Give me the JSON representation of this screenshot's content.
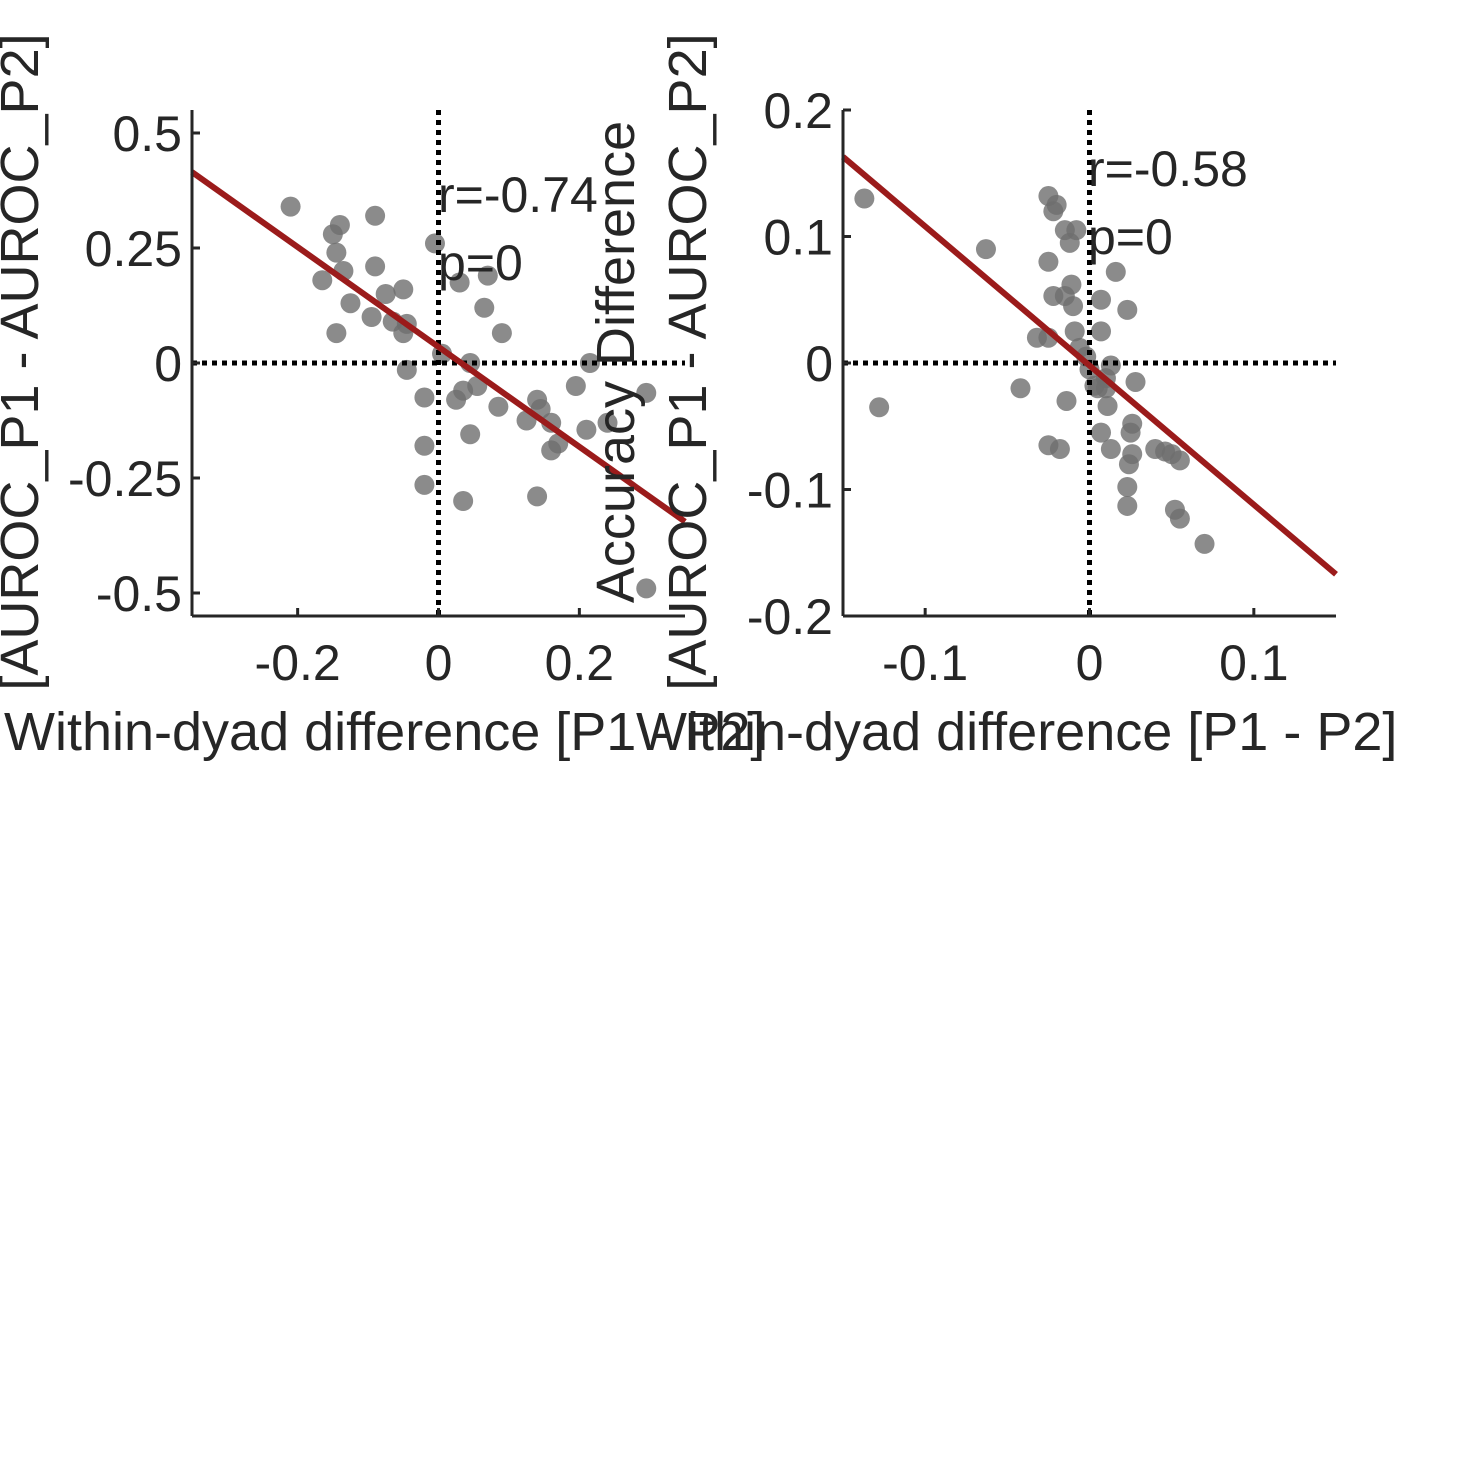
{
  "chart_data": [
    {
      "type": "scatter",
      "title": "",
      "xlabel": "Within-dyad difference [P1 - P2]",
      "ylabel": "[AUROC_P1 - AUROC_P2]",
      "ylabel_prefix": "",
      "xlim": [
        -0.35,
        0.35
      ],
      "ylim": [
        -0.55,
        0.55
      ],
      "xticks": [
        -0.2,
        0,
        0.2
      ],
      "xtick_labels": [
        "-0.2",
        "0",
        "0.2"
      ],
      "yticks": [
        -0.5,
        -0.25,
        0,
        0.25,
        0.5
      ],
      "ytick_labels": [
        "-0.5",
        "-0.25",
        "0",
        "0.25",
        "0.5"
      ],
      "grid": false,
      "reference_lines": {
        "x": 0,
        "y": 0,
        "style": "dotted"
      },
      "annotations": [
        "r=-0.74",
        "p=0"
      ],
      "point_color": "#6e6e6e",
      "fit_line_color": "#9b1b1b",
      "fit_line": {
        "x": [
          -0.35,
          0.35
        ],
        "y": [
          0.415,
          -0.345
        ]
      },
      "points": [
        {
          "x": -0.21,
          "y": 0.34
        },
        {
          "x": -0.15,
          "y": 0.28
        },
        {
          "x": -0.14,
          "y": 0.3
        },
        {
          "x": -0.09,
          "y": 0.32
        },
        {
          "x": -0.145,
          "y": 0.24
        },
        {
          "x": -0.165,
          "y": 0.18
        },
        {
          "x": -0.135,
          "y": 0.2
        },
        {
          "x": -0.09,
          "y": 0.21
        },
        {
          "x": -0.125,
          "y": 0.13
        },
        {
          "x": -0.075,
          "y": 0.15
        },
        {
          "x": -0.05,
          "y": 0.16
        },
        {
          "x": -0.145,
          "y": 0.065
        },
        {
          "x": -0.095,
          "y": 0.1
        },
        {
          "x": -0.065,
          "y": 0.09
        },
        {
          "x": -0.05,
          "y": 0.065
        },
        {
          "x": -0.045,
          "y": 0.085
        },
        {
          "x": -0.045,
          "y": -0.015
        },
        {
          "x": -0.005,
          "y": 0.26
        },
        {
          "x": 0.03,
          "y": 0.175
        },
        {
          "x": 0.07,
          "y": 0.19
        },
        {
          "x": 0.065,
          "y": 0.12
        },
        {
          "x": 0.09,
          "y": 0.065
        },
        {
          "x": 0.005,
          "y": 0.02
        },
        {
          "x": 0.045,
          "y": 0.0
        },
        {
          "x": -0.02,
          "y": -0.075
        },
        {
          "x": 0.025,
          "y": -0.08
        },
        {
          "x": 0.035,
          "y": -0.06
        },
        {
          "x": 0.055,
          "y": -0.05
        },
        {
          "x": 0.085,
          "y": -0.095
        },
        {
          "x": 0.045,
          "y": -0.155
        },
        {
          "x": -0.02,
          "y": -0.18
        },
        {
          "x": -0.02,
          "y": -0.265
        },
        {
          "x": 0.035,
          "y": -0.3
        },
        {
          "x": 0.125,
          "y": -0.125
        },
        {
          "x": 0.14,
          "y": -0.08
        },
        {
          "x": 0.145,
          "y": -0.1
        },
        {
          "x": 0.16,
          "y": -0.13
        },
        {
          "x": 0.17,
          "y": -0.175
        },
        {
          "x": 0.16,
          "y": -0.19
        },
        {
          "x": 0.14,
          "y": -0.29
        },
        {
          "x": 0.195,
          "y": -0.05
        },
        {
          "x": 0.21,
          "y": -0.145
        },
        {
          "x": 0.215,
          "y": 0.0
        },
        {
          "x": 0.24,
          "y": -0.13
        },
        {
          "x": 0.295,
          "y": -0.065
        },
        {
          "x": 0.295,
          "y": -0.49
        }
      ]
    },
    {
      "type": "scatter",
      "title": "",
      "xlabel": "Within-dyad difference [P1 - P2]",
      "ylabel": "[AUROC_P1 - AUROC_P2]",
      "ylabel_prefix": "Accuracy Difference",
      "xlim": [
        -0.15,
        0.15
      ],
      "ylim": [
        -0.2,
        0.2
      ],
      "xticks": [
        -0.1,
        0,
        0.1
      ],
      "xtick_labels": [
        "-0.1",
        "0",
        "0.1"
      ],
      "yticks": [
        -0.2,
        -0.1,
        0,
        0.1,
        0.2
      ],
      "ytick_labels": [
        "-0.2",
        "-0.1",
        "0",
        "0.1",
        "0.2"
      ],
      "grid": false,
      "reference_lines": {
        "x": 0,
        "y": 0,
        "style": "dotted"
      },
      "annotations": [
        "r=-0.58",
        "p=0"
      ],
      "point_color": "#6e6e6e",
      "fit_line_color": "#9b1b1b",
      "fit_line": {
        "x": [
          -0.15,
          0.15
        ],
        "y": [
          0.163,
          -0.167
        ]
      },
      "points": [
        {
          "x": -0.137,
          "y": 0.13
        },
        {
          "x": -0.128,
          "y": -0.035
        },
        {
          "x": -0.063,
          "y": 0.09
        },
        {
          "x": -0.042,
          "y": -0.02
        },
        {
          "x": -0.032,
          "y": 0.02
        },
        {
          "x": -0.025,
          "y": 0.132
        },
        {
          "x": -0.022,
          "y": 0.12
        },
        {
          "x": -0.02,
          "y": 0.125
        },
        {
          "x": -0.015,
          "y": 0.105
        },
        {
          "x": -0.012,
          "y": 0.095
        },
        {
          "x": -0.008,
          "y": 0.105
        },
        {
          "x": -0.025,
          "y": 0.08
        },
        {
          "x": -0.022,
          "y": 0.053
        },
        {
          "x": -0.015,
          "y": 0.053
        },
        {
          "x": -0.011,
          "y": 0.062
        },
        {
          "x": -0.01,
          "y": 0.045
        },
        {
          "x": -0.025,
          "y": 0.02
        },
        {
          "x": -0.009,
          "y": 0.025
        },
        {
          "x": -0.006,
          "y": 0.012
        },
        {
          "x": -0.002,
          "y": 0.005
        },
        {
          "x": 0.0,
          "y": -0.005
        },
        {
          "x": 0.003,
          "y": -0.018
        },
        {
          "x": 0.005,
          "y": -0.02
        },
        {
          "x": -0.014,
          "y": -0.03
        },
        {
          "x": -0.025,
          "y": -0.065
        },
        {
          "x": -0.018,
          "y": -0.068
        },
        {
          "x": 0.007,
          "y": 0.05
        },
        {
          "x": 0.007,
          "y": 0.025
        },
        {
          "x": 0.016,
          "y": 0.072
        },
        {
          "x": 0.023,
          "y": 0.042
        },
        {
          "x": 0.013,
          "y": -0.002
        },
        {
          "x": 0.01,
          "y": -0.012
        },
        {
          "x": 0.01,
          "y": -0.02
        },
        {
          "x": 0.011,
          "y": -0.034
        },
        {
          "x": 0.028,
          "y": -0.015
        },
        {
          "x": 0.007,
          "y": -0.055
        },
        {
          "x": 0.013,
          "y": -0.068
        },
        {
          "x": 0.026,
          "y": -0.048
        },
        {
          "x": 0.025,
          "y": -0.055
        },
        {
          "x": 0.026,
          "y": -0.072
        },
        {
          "x": 0.024,
          "y": -0.08
        },
        {
          "x": 0.023,
          "y": -0.098
        },
        {
          "x": 0.023,
          "y": -0.113
        },
        {
          "x": 0.04,
          "y": -0.068
        },
        {
          "x": 0.046,
          "y": -0.07
        },
        {
          "x": 0.05,
          "y": -0.072
        },
        {
          "x": 0.055,
          "y": -0.077
        },
        {
          "x": 0.052,
          "y": -0.116
        },
        {
          "x": 0.055,
          "y": -0.123
        },
        {
          "x": 0.07,
          "y": -0.143
        }
      ]
    }
  ]
}
